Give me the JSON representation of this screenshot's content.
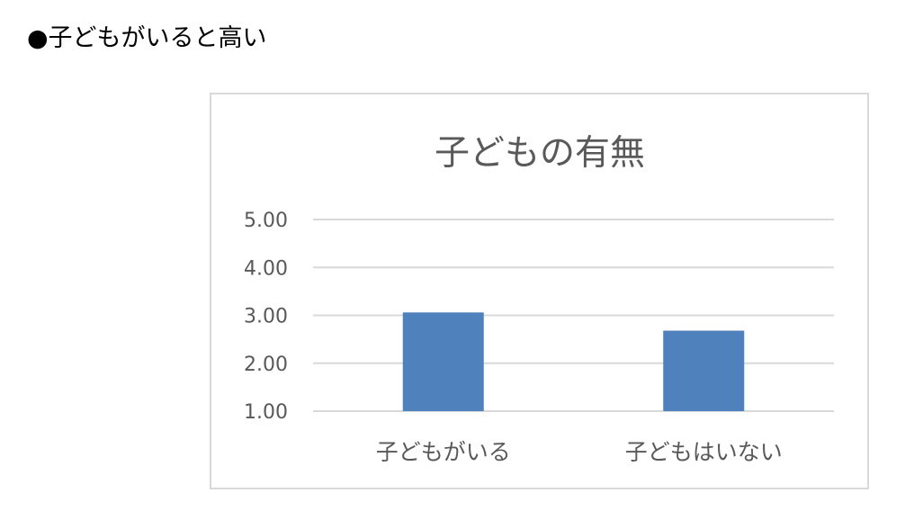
{
  "heading": "●子どもがいると高い",
  "chart_data": {
    "type": "bar",
    "title": "子どもの有無",
    "categories": [
      "子どもがいる",
      "子どもはいない"
    ],
    "values": [
      3.06,
      2.68
    ],
    "yticks": [
      "1.00",
      "2.00",
      "3.00",
      "4.00",
      "5.00"
    ],
    "ylim": [
      1,
      5
    ],
    "grid": true,
    "legend": "none",
    "bar_color": "#4f81bd",
    "grid_color": "#d9d9d9"
  }
}
